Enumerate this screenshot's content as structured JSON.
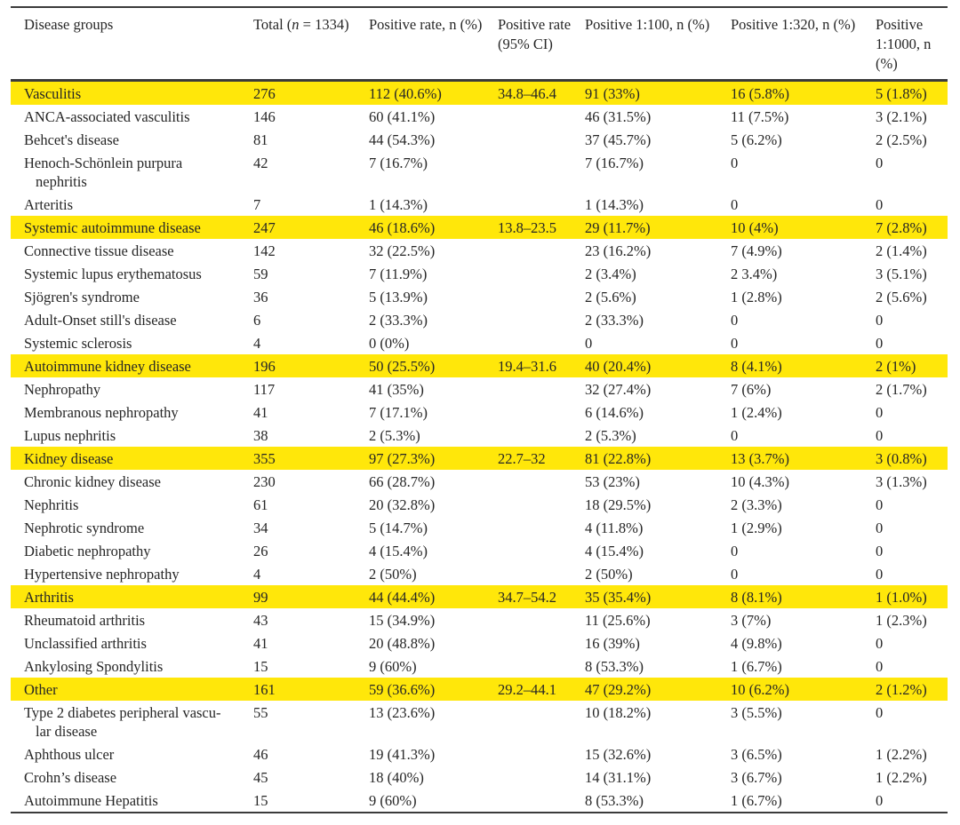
{
  "colors": {
    "highlight_row": "#ffe70a",
    "rule": "#3b3b3b",
    "text": "#262626",
    "background": "#ffffff"
  },
  "table": {
    "header": {
      "disease_groups": "Disease groups",
      "total_prefix": "Total (",
      "total_n": "n",
      "total_suffix": " = 1334)",
      "positive_rate": "Positive rate, n (%)",
      "positive_rate_ci": "Positive rate (95% CI)",
      "positive_100": "Positive 1:100, n (%)",
      "positive_320": "Positive 1:320, n (%)",
      "positive_1000": "Positive 1:1000, n (%)"
    },
    "rows": [
      {
        "highlight": true,
        "name": "Vasculitis",
        "total": "276",
        "rate": "112 (40.6%)",
        "ci": "34.8–46.4",
        "p100": "91 (33%)",
        "p320": "16 (5.8%)",
        "p1000": "5 (1.8%)"
      },
      {
        "highlight": false,
        "name": "ANCA-associated vasculitis",
        "total": "146",
        "rate": "60 (41.1%)",
        "ci": "",
        "p100": "46 (31.5%)",
        "p320": "11 (7.5%)",
        "p1000": "3 (2.1%)"
      },
      {
        "highlight": false,
        "name": "Behcet's disease",
        "total": "81",
        "rate": "44 (54.3%)",
        "ci": "",
        "p100": "37 (45.7%)",
        "p320": "5 (6.2%)",
        "p1000": "2 (2.5%)"
      },
      {
        "highlight": false,
        "name": [
          "Henoch-Schönlein purpura",
          "nephritis"
        ],
        "total": "42",
        "rate": "7 (16.7%)",
        "ci": "",
        "p100": "7 (16.7%)",
        "p320": "0",
        "p1000": "0"
      },
      {
        "highlight": false,
        "name": "Arteritis",
        "total": "7",
        "rate": "1 (14.3%)",
        "ci": "",
        "p100": "1 (14.3%)",
        "p320": "0",
        "p1000": "0"
      },
      {
        "highlight": true,
        "name": "Systemic autoimmune disease",
        "total": "247",
        "rate": "46 (18.6%)",
        "ci": "13.8–23.5",
        "p100": "29 (11.7%)",
        "p320": "10 (4%)",
        "p1000": "7 (2.8%)"
      },
      {
        "highlight": false,
        "name": "Connective tissue disease",
        "total": "142",
        "rate": "32 (22.5%)",
        "ci": "",
        "p100": "23 (16.2%)",
        "p320": "7 (4.9%)",
        "p1000": "2 (1.4%)"
      },
      {
        "highlight": false,
        "name": "Systemic lupus erythematosus",
        "total": "59",
        "rate": "7 (11.9%)",
        "ci": "",
        "p100": "2 (3.4%)",
        "p320": "2 3.4%)",
        "p1000": "3 (5.1%)"
      },
      {
        "highlight": false,
        "name": "Sjögren's syndrome",
        "total": "36",
        "rate": "5 (13.9%)",
        "ci": "",
        "p100": "2 (5.6%)",
        "p320": "1 (2.8%)",
        "p1000": "2 (5.6%)"
      },
      {
        "highlight": false,
        "name": "Adult-Onset still's disease",
        "total": "6",
        "rate": "2 (33.3%)",
        "ci": "",
        "p100": "2 (33.3%)",
        "p320": "0",
        "p1000": "0"
      },
      {
        "highlight": false,
        "name": "Systemic sclerosis",
        "total": "4",
        "rate": "0 (0%)",
        "ci": "",
        "p100": "0",
        "p320": "0",
        "p1000": "0"
      },
      {
        "highlight": true,
        "name": "Autoimmune kidney disease",
        "total": "196",
        "rate": "50 (25.5%)",
        "ci": "19.4–31.6",
        "p100": "40 (20.4%)",
        "p320": "8 (4.1%)",
        "p1000": "2 (1%)"
      },
      {
        "highlight": false,
        "name": "Nephropathy",
        "total": "117",
        "rate": "41 (35%)",
        "ci": "",
        "p100": "32 (27.4%)",
        "p320": "7 (6%)",
        "p1000": "2 (1.7%)"
      },
      {
        "highlight": false,
        "name": "Membranous nephropathy",
        "total": "41",
        "rate": "7 (17.1%)",
        "ci": "",
        "p100": "6 (14.6%)",
        "p320": "1 (2.4%)",
        "p1000": "0"
      },
      {
        "highlight": false,
        "name": "Lupus nephritis",
        "total": "38",
        "rate": "2 (5.3%)",
        "ci": "",
        "p100": "2 (5.3%)",
        "p320": "0",
        "p1000": "0"
      },
      {
        "highlight": true,
        "name": "Kidney disease",
        "total": "355",
        "rate": "97 (27.3%)",
        "ci": "22.7–32",
        "p100": "81 (22.8%)",
        "p320": "13 (3.7%)",
        "p1000": "3 (0.8%)"
      },
      {
        "highlight": false,
        "name": "Chronic kidney disease",
        "total": "230",
        "rate": "66 (28.7%)",
        "ci": "",
        "p100": "53 (23%)",
        "p320": "10 (4.3%)",
        "p1000": "3 (1.3%)"
      },
      {
        "highlight": false,
        "name": "Nephritis",
        "total": "61",
        "rate": "20 (32.8%)",
        "ci": "",
        "p100": "18 (29.5%)",
        "p320": "2 (3.3%)",
        "p1000": "0"
      },
      {
        "highlight": false,
        "name": "Nephrotic syndrome",
        "total": "34",
        "rate": "5 (14.7%)",
        "ci": "",
        "p100": "4 (11.8%)",
        "p320": "1 (2.9%)",
        "p1000": "0"
      },
      {
        "highlight": false,
        "name": "Diabetic nephropathy",
        "total": "26",
        "rate": "4 (15.4%)",
        "ci": "",
        "p100": "4 (15.4%)",
        "p320": "0",
        "p1000": "0"
      },
      {
        "highlight": false,
        "name": "Hypertensive nephropathy",
        "total": "4",
        "rate": "2 (50%)",
        "ci": "",
        "p100": "2 (50%)",
        "p320": "0",
        "p1000": "0"
      },
      {
        "highlight": true,
        "name": "Arthritis",
        "total": "99",
        "rate": "44 (44.4%)",
        "ci": "34.7–54.2",
        "p100": "35 (35.4%)",
        "p320": "8 (8.1%)",
        "p1000": "1 (1.0%)"
      },
      {
        "highlight": false,
        "name": "Rheumatoid arthritis",
        "total": "43",
        "rate": "15 (34.9%)",
        "ci": "",
        "p100": "11 (25.6%)",
        "p320": "3 (7%)",
        "p1000": "1 (2.3%)"
      },
      {
        "highlight": false,
        "name": "Unclassified arthritis",
        "total": "41",
        "rate": "20 (48.8%)",
        "ci": "",
        "p100": "16 (39%)",
        "p320": "4 (9.8%)",
        "p1000": "0"
      },
      {
        "highlight": false,
        "name": "Ankylosing Spondylitis",
        "total": "15",
        "rate": "9 (60%)",
        "ci": "",
        "p100": "8 (53.3%)",
        "p320": "1 (6.7%)",
        "p1000": "0"
      },
      {
        "highlight": true,
        "name": "Other",
        "total": "161",
        "rate": "59 (36.6%)",
        "ci": "29.2–44.1",
        "p100": "47 (29.2%)",
        "p320": "10 (6.2%)",
        "p1000": "2 (1.2%)"
      },
      {
        "highlight": false,
        "name": [
          "Type 2 diabetes peripheral vascu-",
          "lar disease"
        ],
        "total": "55",
        "rate": "13 (23.6%)",
        "ci": "",
        "p100": "10 (18.2%)",
        "p320": "3 (5.5%)",
        "p1000": "0"
      },
      {
        "highlight": false,
        "name": "Aphthous ulcer",
        "total": "46",
        "rate": "19 (41.3%)",
        "ci": "",
        "p100": "15 (32.6%)",
        "p320": "3 (6.5%)",
        "p1000": "1 (2.2%)"
      },
      {
        "highlight": false,
        "name": "Crohn’s disease",
        "total": "45",
        "rate": "18 (40%)",
        "ci": "",
        "p100": "14 (31.1%)",
        "p320": "3 (6.7%)",
        "p1000": "1 (2.2%)"
      },
      {
        "highlight": false,
        "name": "Autoimmune Hepatitis",
        "total": "15",
        "rate": "9 (60%)",
        "ci": "",
        "p100": "8 (53.3%)",
        "p320": "1 (6.7%)",
        "p1000": "0"
      }
    ]
  }
}
